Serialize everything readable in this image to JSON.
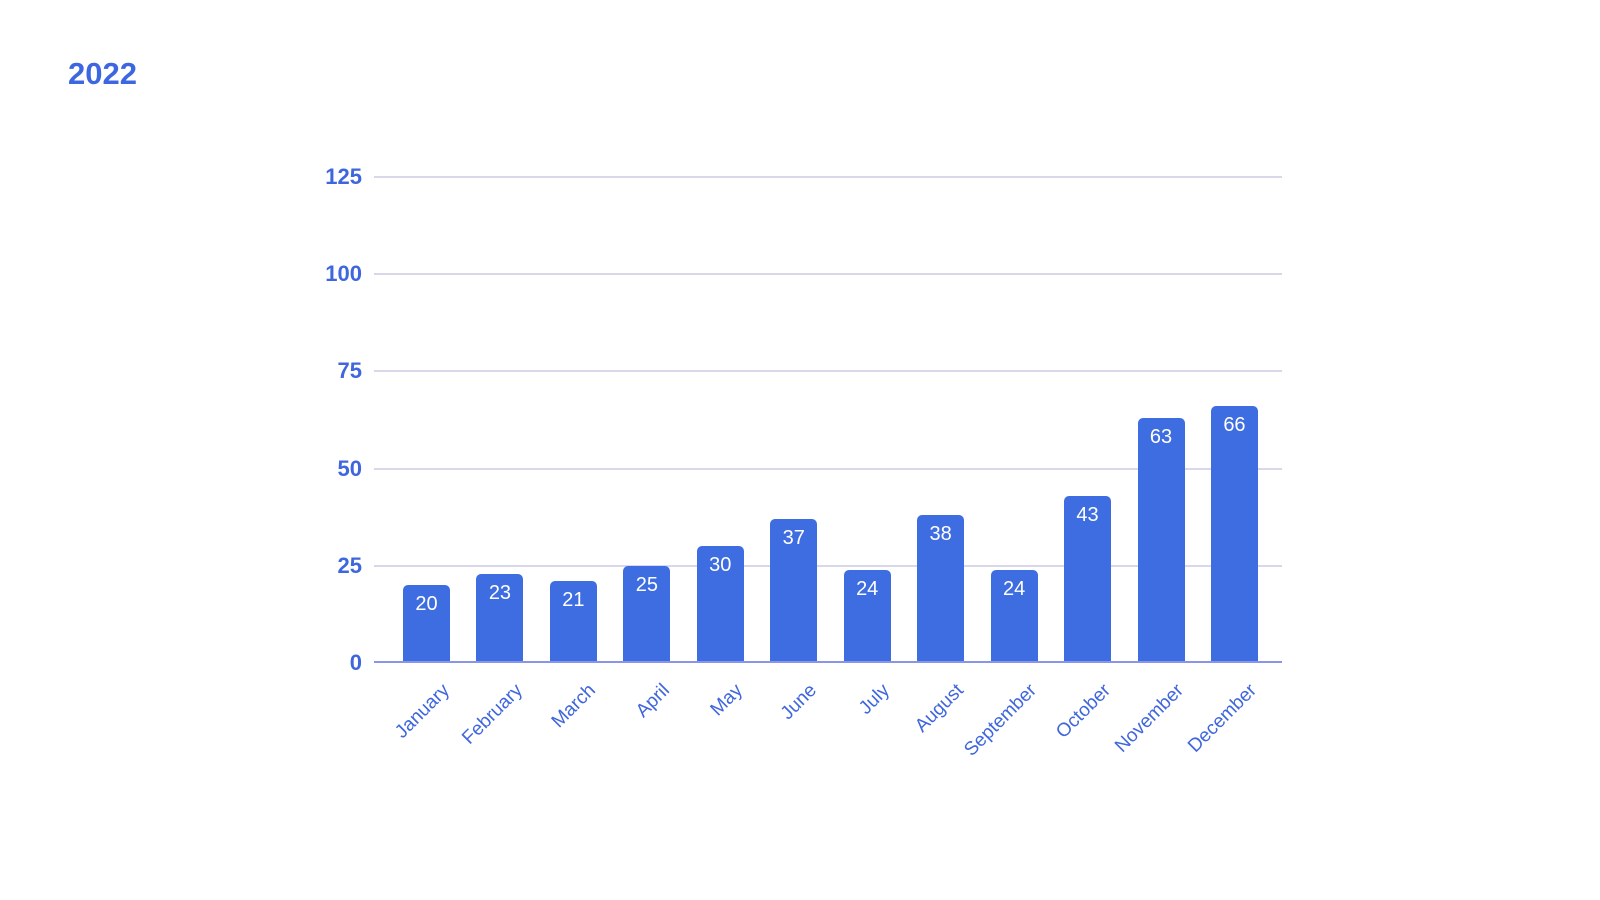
{
  "page": {
    "background_color": "#ffffff"
  },
  "chart_data": {
    "type": "bar",
    "title": "2022",
    "categories": [
      "January",
      "February",
      "March",
      "April",
      "May",
      "June",
      "July",
      "August",
      "September",
      "October",
      "November",
      "December"
    ],
    "values": [
      20,
      23,
      21,
      25,
      30,
      37,
      24,
      38,
      24,
      43,
      63,
      66
    ],
    "xlabel": "",
    "ylabel": "",
    "ylim": [
      0,
      125
    ],
    "yticks": [
      0,
      25,
      50,
      75,
      100,
      125
    ],
    "grid": true,
    "legend": "none",
    "value_labels_shown": true,
    "bar_color": "#3e6ce1",
    "value_label_color": "#ffffff",
    "axis_label_color": "#3f66dd",
    "title_color": "#3c67e0",
    "gridline_color": "#d8d8ea",
    "baseline_color": "#8995e9"
  }
}
